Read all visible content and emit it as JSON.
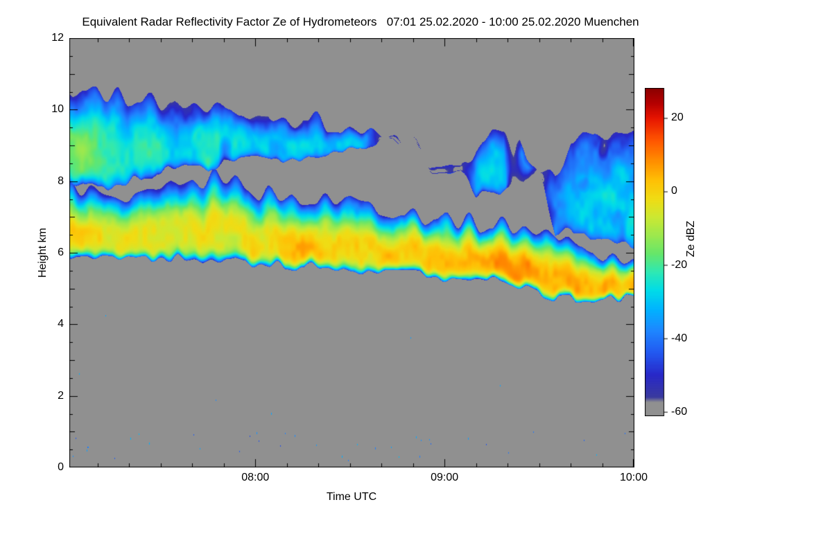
{
  "title": "Equivalent Radar Reflectivity Factor Ze of Hydrometeors   07:01 25.02.2020 - 10:00 25.02.2020 Muenchen",
  "chart_data": {
    "type": "heatmap",
    "title": "Equivalent Radar Reflectivity Factor Ze of Hydrometeors",
    "time_range_label": "07:01 25.02.2020 - 10:00 25.02.2020",
    "station": "Muenchen",
    "xlabel": "Time UTC",
    "ylabel": "Height km",
    "colorbar_label": "Ze dBZ",
    "x_range_hours": [
      7.0167,
      10.0
    ],
    "y_range_km": [
      0,
      12
    ],
    "x_ticks": [
      {
        "hours": 8,
        "label": "08:00"
      },
      {
        "hours": 9,
        "label": "09:00"
      },
      {
        "hours": 10,
        "label": "10:00"
      }
    ],
    "x_minor_tick_minutes": 10,
    "y_ticks": [
      {
        "km": 0,
        "label": "0"
      },
      {
        "km": 2,
        "label": "2"
      },
      {
        "km": 4,
        "label": "4"
      },
      {
        "km": 6,
        "label": "6"
      },
      {
        "km": 8,
        "label": "8"
      },
      {
        "km": 10,
        "label": "10"
      },
      {
        "km": 12,
        "label": "12"
      }
    ],
    "y_minor_tick_km": 0.5,
    "background_color": "#909090",
    "colorbar": {
      "min": -61,
      "max": 28,
      "ticks": [
        {
          "value": 20,
          "label": "20"
        },
        {
          "value": 0,
          "label": "0"
        },
        {
          "value": -20,
          "label": "-20"
        },
        {
          "value": -40,
          "label": "-40"
        },
        {
          "value": -60,
          "label": "-60"
        }
      ]
    },
    "colormap": [
      [
        -61,
        "#909090"
      ],
      [
        -57.5,
        "#909090"
      ],
      [
        -56,
        "#3a3a9e"
      ],
      [
        -50,
        "#2828c8"
      ],
      [
        -44,
        "#2258f0"
      ],
      [
        -38,
        "#1e86ff"
      ],
      [
        -32,
        "#00b4ff"
      ],
      [
        -27,
        "#00dce8"
      ],
      [
        -22,
        "#2ee8b4"
      ],
      [
        -17,
        "#66e66a"
      ],
      [
        -12,
        "#9ce84e"
      ],
      [
        -7,
        "#cce832"
      ],
      [
        -2,
        "#f0dc14"
      ],
      [
        3,
        "#ffc005"
      ],
      [
        8,
        "#ff9000"
      ],
      [
        14,
        "#ff5500"
      ],
      [
        20,
        "#e61400"
      ],
      [
        24,
        "#b40000"
      ],
      [
        28,
        "#8c0000"
      ]
    ],
    "samples": {
      "comment_units": "minutes after 07:00 UTC; heights km; peak reflectivity dBZ; null = layer absent",
      "minutes_after_0700": [
        0,
        5,
        10,
        15,
        20,
        25,
        30,
        35,
        40,
        45,
        50,
        55,
        60,
        65,
        70,
        75,
        80,
        85,
        90,
        95,
        100,
        105,
        110,
        115,
        120,
        125,
        130,
        135,
        140,
        145,
        150,
        155,
        160,
        165,
        170,
        175,
        180
      ],
      "main_layer": {
        "base_km": [
          5.9,
          5.9,
          5.9,
          5.9,
          5.9,
          5.9,
          5.85,
          5.85,
          5.8,
          5.8,
          5.8,
          5.75,
          5.7,
          5.7,
          5.65,
          5.6,
          5.6,
          5.55,
          5.5,
          5.5,
          5.45,
          5.4,
          5.4,
          5.35,
          5.3,
          5.3,
          5.25,
          5.2,
          5.1,
          5.0,
          4.9,
          4.7,
          4.7,
          4.7,
          4.7,
          4.7,
          4.7
        ],
        "top_km": [
          8.0,
          7.8,
          7.6,
          7.4,
          7.3,
          7.5,
          7.6,
          7.8,
          7.9,
          8.0,
          8.2,
          8.0,
          7.8,
          7.6,
          7.5,
          7.5,
          7.4,
          7.5,
          7.6,
          7.4,
          7.3,
          7.2,
          7.1,
          7.0,
          7.0,
          6.9,
          6.9,
          6.8,
          6.8,
          6.7,
          6.6,
          6.5,
          6.2,
          6.1,
          6.0,
          5.9,
          5.9
        ],
        "peak_dbz": [
          -2,
          -2,
          -3,
          -4,
          -4,
          -3,
          -3,
          -4,
          -3,
          -3,
          -2,
          -3,
          -2,
          -1,
          2,
          3,
          1,
          -1,
          -2,
          -1,
          0,
          1,
          3,
          4,
          3,
          1,
          2,
          4,
          6,
          7,
          7,
          6,
          5,
          3,
          2,
          4,
          5
        ]
      },
      "upper_layer": {
        "base_km": [
          8.0,
          7.9,
          7.8,
          7.9,
          8.0,
          8.2,
          8.2,
          8.4,
          8.5,
          8.3,
          8.6,
          8.6,
          8.6,
          8.5,
          8.6,
          8.7,
          8.7,
          8.8,
          8.8,
          8.9,
          null,
          null,
          null,
          null,
          null,
          null,
          7.6,
          7.6,
          7.7,
          7.8,
          null,
          6.5,
          6.6,
          6.5,
          6.4,
          6.3,
          6.2
        ],
        "top_km": [
          10.6,
          10.6,
          10.5,
          10.4,
          10.4,
          10.3,
          10.2,
          10.2,
          10.1,
          10.0,
          10.0,
          9.9,
          10.0,
          9.9,
          9.8,
          9.8,
          9.6,
          9.6,
          9.5,
          9.4,
          null,
          null,
          null,
          null,
          null,
          null,
          9.0,
          9.3,
          9.2,
          9.0,
          null,
          8.2,
          9.0,
          9.1,
          9.2,
          9.1,
          9.2
        ],
        "peak_dbz": [
          -14,
          -14,
          -16,
          -20,
          -22,
          -22,
          -20,
          -24,
          -25,
          -22,
          -26,
          -24,
          -26,
          -28,
          -28,
          -30,
          -30,
          -32,
          -30,
          -33,
          null,
          null,
          null,
          null,
          null,
          null,
          -30,
          -28,
          -30,
          -33,
          null,
          -38,
          -30,
          -28,
          -27,
          -28,
          -28
        ]
      }
    },
    "ground_clutter": {
      "probability": 0.06,
      "height_range_km": [
        0.1,
        1.0
      ],
      "dbz_range": [
        -46,
        -30
      ]
    }
  }
}
